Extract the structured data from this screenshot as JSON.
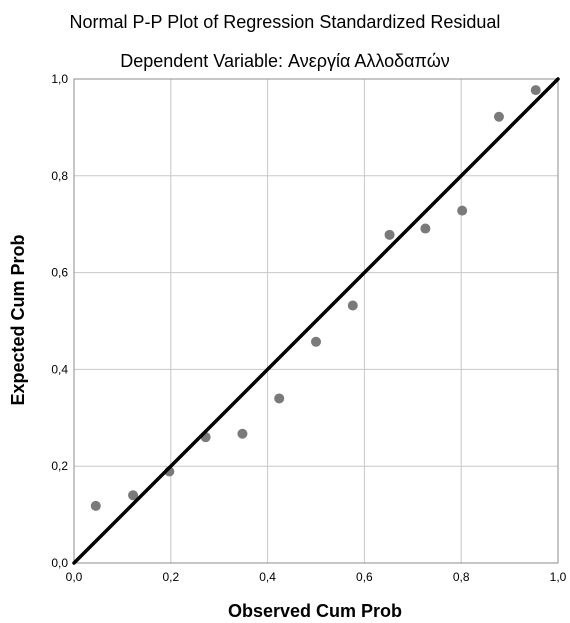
{
  "chart_data": {
    "type": "scatter",
    "title": "Normal P-P Plot of Regression Standardized Residual",
    "subtitle": "Dependent Variable: Ανεργία Αλλοδαπών",
    "xlabel": "Observed Cum Prob",
    "ylabel": "Expected Cum Prob",
    "xlim": [
      0,
      1
    ],
    "ylim": [
      0,
      1
    ],
    "x_ticks": [
      "0,0",
      "0,2",
      "0,4",
      "0,6",
      "0,8",
      "1,0"
    ],
    "y_ticks": [
      "0,0",
      "0,2",
      "0,4",
      "0,6",
      "0,8",
      "1,0"
    ],
    "grid": true,
    "reference_line": {
      "from": [
        0,
        0
      ],
      "to": [
        1,
        1
      ]
    },
    "points": [
      {
        "x": 0.045,
        "y": 0.118
      },
      {
        "x": 0.122,
        "y": 0.14
      },
      {
        "x": 0.197,
        "y": 0.189
      },
      {
        "x": 0.272,
        "y": 0.26
      },
      {
        "x": 0.348,
        "y": 0.267
      },
      {
        "x": 0.424,
        "y": 0.34
      },
      {
        "x": 0.5,
        "y": 0.457
      },
      {
        "x": 0.576,
        "y": 0.532
      },
      {
        "x": 0.652,
        "y": 0.678
      },
      {
        "x": 0.726,
        "y": 0.691
      },
      {
        "x": 0.802,
        "y": 0.728
      },
      {
        "x": 0.878,
        "y": 0.922
      },
      {
        "x": 0.954,
        "y": 0.977
      }
    ],
    "colors": {
      "point": "#7a7a7a",
      "line": "#000000",
      "grid": "#c8c8c8",
      "frame": "#8c8c8c",
      "background": "#ffffff"
    }
  }
}
